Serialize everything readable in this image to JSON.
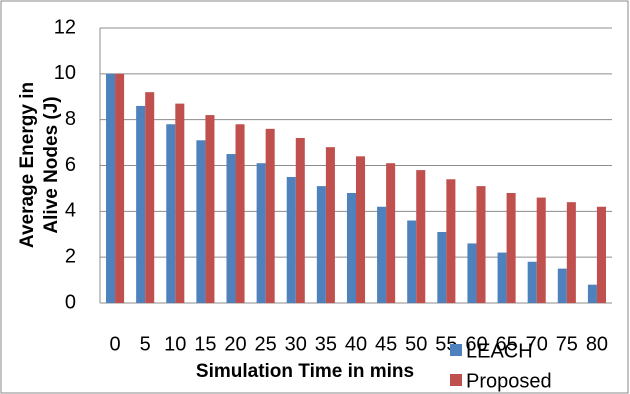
{
  "chart_data": {
    "type": "bar",
    "y_label": [
      "Average Energy in",
      "Alive Nodes (J)"
    ],
    "x_label": "Simulation Time in mins",
    "categories": [
      "0",
      "5",
      "10",
      "15",
      "20",
      "25",
      "30",
      "35",
      "40",
      "45",
      "50",
      "55",
      "60",
      "65",
      "70",
      "75",
      "80"
    ],
    "series": [
      {
        "name": "LEACH",
        "color": "#4f81bd",
        "values": [
          10,
          8.6,
          7.8,
          7.1,
          6.5,
          6.1,
          5.5,
          5.1,
          4.8,
          4.2,
          3.6,
          3.1,
          2.6,
          2.2,
          1.8,
          1.5,
          0.8
        ]
      },
      {
        "name": "Proposed",
        "color": "#c0504d",
        "values": [
          10,
          9.2,
          8.7,
          8.2,
          7.8,
          7.6,
          7.2,
          6.8,
          6.4,
          6.1,
          5.8,
          5.4,
          5.1,
          4.8,
          4.6,
          4.4,
          4.2
        ]
      }
    ],
    "ylim": [
      0,
      12
    ],
    "yticks": [
      0,
      2,
      4,
      6,
      8,
      10,
      12
    ],
    "grid": true,
    "legend": "bottom-right"
  }
}
